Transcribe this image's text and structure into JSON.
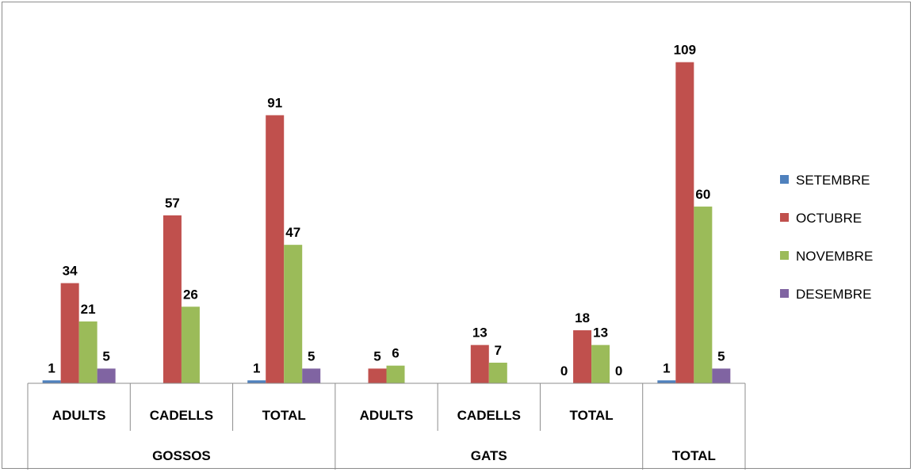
{
  "chart_data": {
    "type": "bar",
    "categories": [
      {
        "group": "GOSSOS",
        "label": "ADULTS"
      },
      {
        "group": "GOSSOS",
        "label": "CADELLS"
      },
      {
        "group": "GOSSOS",
        "label": "TOTAL"
      },
      {
        "group": "GATS",
        "label": "ADULTS"
      },
      {
        "group": "GATS",
        "label": "CADELLS"
      },
      {
        "group": "GATS",
        "label": "TOTAL"
      },
      {
        "group": "",
        "label": ""
      }
    ],
    "groups": [
      "GOSSOS",
      "GATS",
      "TOTAL"
    ],
    "series": [
      {
        "name": "SETEMBRE",
        "color": "#4f81bd",
        "values": [
          1,
          null,
          1,
          null,
          null,
          0,
          1
        ]
      },
      {
        "name": "OCTUBRE",
        "color": "#c0504d",
        "values": [
          34,
          57,
          91,
          5,
          13,
          18,
          109
        ]
      },
      {
        "name": "NOVEMBRE",
        "color": "#9bbb59",
        "values": [
          21,
          26,
          47,
          6,
          7,
          13,
          60
        ]
      },
      {
        "name": "DESEMBRE",
        "color": "#8064a2",
        "values": [
          5,
          null,
          5,
          null,
          null,
          0,
          5
        ]
      }
    ],
    "ylim": [
      0,
      115
    ],
    "grid": false,
    "legend": "right"
  }
}
